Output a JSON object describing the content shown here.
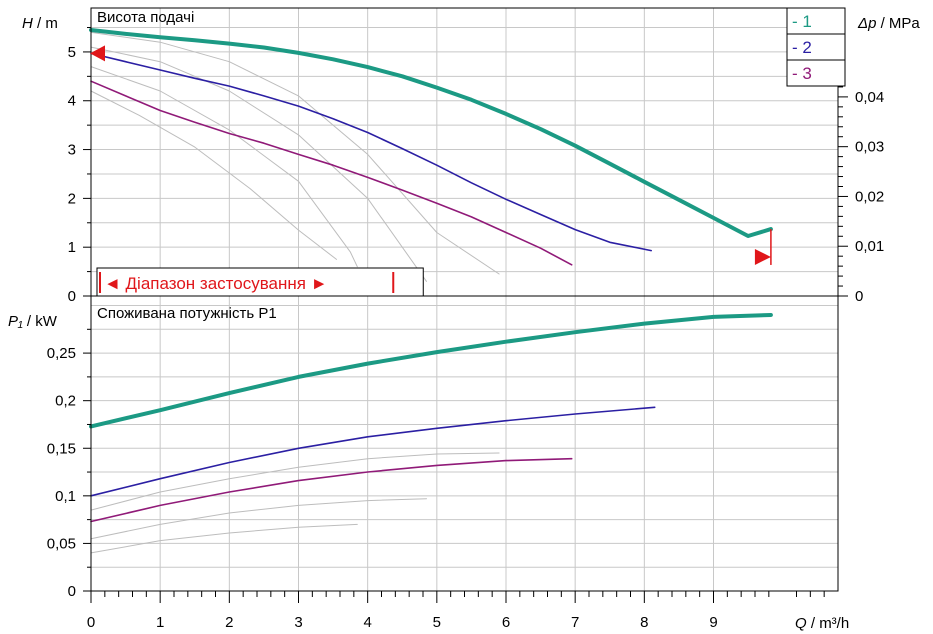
{
  "chart_data": {
    "type": "line",
    "x_axis": {
      "label_var": "Q",
      "label_unit": "m³/h",
      "range": [
        0,
        10.8
      ],
      "ticks": [
        0,
        1,
        2,
        3,
        4,
        5,
        6,
        7,
        8,
        9
      ],
      "tick_labels": [
        "0",
        "1",
        "2",
        "3",
        "4",
        "5",
        "6",
        "7",
        "8",
        "9"
      ]
    },
    "head_panel": {
      "title": "Висота подачі",
      "y_label_var": "H",
      "y_label_unit": "m",
      "y_range": [
        0,
        5.9
      ],
      "y_ticks": [
        0,
        1,
        2,
        3,
        4,
        5
      ],
      "y_tick_labels": [
        "0",
        "1",
        "2",
        "3",
        "4",
        "5"
      ],
      "right_axis": {
        "label_var": "Δp",
        "label_unit": "MPa",
        "ticks": [
          0,
          0.01,
          0.02,
          0.03,
          0.04
        ],
        "tick_labels": [
          "0",
          "0,01",
          "0,02",
          "0,03",
          "0,04"
        ]
      },
      "range_box_label": "◄ Діапазон застосування ►",
      "range_box_x": [
        0.13,
        4.37
      ],
      "legend": [
        "- 1",
        "- 2",
        "- 3"
      ],
      "series": [
        {
          "name": "1",
          "color": "#1c9a84",
          "width": 4,
          "points": [
            [
              0,
              5.45
            ],
            [
              0.5,
              5.37
            ],
            [
              1,
              5.3
            ],
            [
              1.5,
              5.24
            ],
            [
              2,
              5.17
            ],
            [
              2.5,
              5.09
            ],
            [
              3,
              4.98
            ],
            [
              3.5,
              4.85
            ],
            [
              4,
              4.69
            ],
            [
              4.5,
              4.5
            ],
            [
              5,
              4.27
            ],
            [
              5.5,
              4.02
            ],
            [
              6,
              3.73
            ],
            [
              6.5,
              3.42
            ],
            [
              7,
              3.08
            ],
            [
              7.5,
              2.71
            ],
            [
              8,
              2.34
            ],
            [
              8.5,
              1.97
            ],
            [
              9,
              1.6
            ],
            [
              9.5,
              1.23
            ],
            [
              9.83,
              1.37
            ]
          ]
        },
        {
          "name": "2",
          "color": "#2b1fa3",
          "width": 1.6,
          "points": [
            [
              0,
              4.97
            ],
            [
              0.5,
              4.8
            ],
            [
              1,
              4.63
            ],
            [
              1.5,
              4.46
            ],
            [
              2,
              4.3
            ],
            [
              2.5,
              4.1
            ],
            [
              3,
              3.89
            ],
            [
              3.5,
              3.63
            ],
            [
              4,
              3.35
            ],
            [
              4.5,
              3.02
            ],
            [
              5,
              2.68
            ],
            [
              5.5,
              2.32
            ],
            [
              6,
              1.98
            ],
            [
              6.5,
              1.67
            ],
            [
              7,
              1.36
            ],
            [
              7.5,
              1.1
            ],
            [
              8.1,
              0.93
            ]
          ]
        },
        {
          "name": "3",
          "color": "#901a78",
          "width": 1.6,
          "points": [
            [
              0,
              4.4
            ],
            [
              0.5,
              4.1
            ],
            [
              1,
              3.8
            ],
            [
              1.5,
              3.56
            ],
            [
              2,
              3.33
            ],
            [
              2.5,
              3.13
            ],
            [
              3,
              2.9
            ],
            [
              3.5,
              2.68
            ],
            [
              4,
              2.43
            ],
            [
              4.5,
              2.17
            ],
            [
              5,
              1.9
            ],
            [
              5.5,
              1.62
            ],
            [
              6,
              1.3
            ],
            [
              6.5,
              0.98
            ],
            [
              6.95,
              0.64
            ]
          ]
        }
      ],
      "grey_series": [
        [
          [
            0,
            5.4
          ],
          [
            1,
            5.2
          ],
          [
            2,
            4.8
          ],
          [
            3,
            4.1
          ],
          [
            4,
            2.9
          ],
          [
            5,
            1.3
          ],
          [
            5.9,
            0.45
          ]
        ],
        [
          [
            0,
            5.1
          ],
          [
            1,
            4.8
          ],
          [
            2,
            4.2
          ],
          [
            3,
            3.3
          ],
          [
            4,
            2.0
          ],
          [
            4.85,
            0.3
          ]
        ],
        [
          [
            0,
            4.7
          ],
          [
            1,
            4.2
          ],
          [
            2,
            3.4
          ],
          [
            3,
            2.35
          ],
          [
            3.75,
            0.9
          ],
          [
            3.85,
            0.6
          ]
        ],
        [
          [
            0,
            4.2
          ],
          [
            0.7,
            3.7
          ],
          [
            1.5,
            3.05
          ],
          [
            2.3,
            2.2
          ],
          [
            3,
            1.35
          ],
          [
            3.55,
            0.75
          ]
        ]
      ],
      "left_marker_y": 4.97,
      "right_marker": {
        "x": 9.83,
        "y": 0.8,
        "y_top": 1.37
      }
    },
    "power_panel": {
      "title": "Споживана потужність P1",
      "y_label_var": "P₁",
      "y_label_unit": "kW",
      "y_range": [
        0,
        0.31
      ],
      "y_ticks": [
        0,
        0.05,
        0.1,
        0.15,
        0.2,
        0.25
      ],
      "y_tick_labels": [
        "0",
        "0,05",
        "0,1",
        "0,15",
        "0,2",
        "0,25"
      ],
      "series": [
        {
          "name": "1",
          "color": "#1c9a84",
          "width": 4,
          "points": [
            [
              0,
              0.173
            ],
            [
              1,
              0.19
            ],
            [
              2,
              0.208
            ],
            [
              3,
              0.225
            ],
            [
              4,
              0.239
            ],
            [
              5,
              0.251
            ],
            [
              6,
              0.262
            ],
            [
              7,
              0.272
            ],
            [
              8,
              0.281
            ],
            [
              9,
              0.288
            ],
            [
              9.83,
              0.29
            ]
          ]
        },
        {
          "name": "2",
          "color": "#2b1fa3",
          "width": 1.6,
          "points": [
            [
              0,
              0.1
            ],
            [
              1,
              0.118
            ],
            [
              2,
              0.135
            ],
            [
              3,
              0.15
            ],
            [
              4,
              0.162
            ],
            [
              5,
              0.171
            ],
            [
              6,
              0.179
            ],
            [
              7,
              0.186
            ],
            [
              8.15,
              0.193
            ]
          ]
        },
        {
          "name": "3",
          "color": "#901a78",
          "width": 1.6,
          "points": [
            [
              0,
              0.073
            ],
            [
              1,
              0.09
            ],
            [
              2,
              0.104
            ],
            [
              3,
              0.116
            ],
            [
              4,
              0.125
            ],
            [
              5,
              0.132
            ],
            [
              6,
              0.137
            ],
            [
              6.95,
              0.139
            ]
          ]
        }
      ],
      "grey_series": [
        [
          [
            0,
            0.085
          ],
          [
            1,
            0.104
          ],
          [
            2,
            0.118
          ],
          [
            3,
            0.13
          ],
          [
            4,
            0.139
          ],
          [
            5,
            0.144
          ],
          [
            5.9,
            0.145
          ]
        ],
        [
          [
            0,
            0.055
          ],
          [
            1,
            0.07
          ],
          [
            2,
            0.082
          ],
          [
            3,
            0.09
          ],
          [
            4,
            0.095
          ],
          [
            4.85,
            0.097
          ]
        ],
        [
          [
            0,
            0.04
          ],
          [
            1,
            0.053
          ],
          [
            2,
            0.061
          ],
          [
            3,
            0.067
          ],
          [
            3.85,
            0.07
          ]
        ]
      ]
    }
  }
}
